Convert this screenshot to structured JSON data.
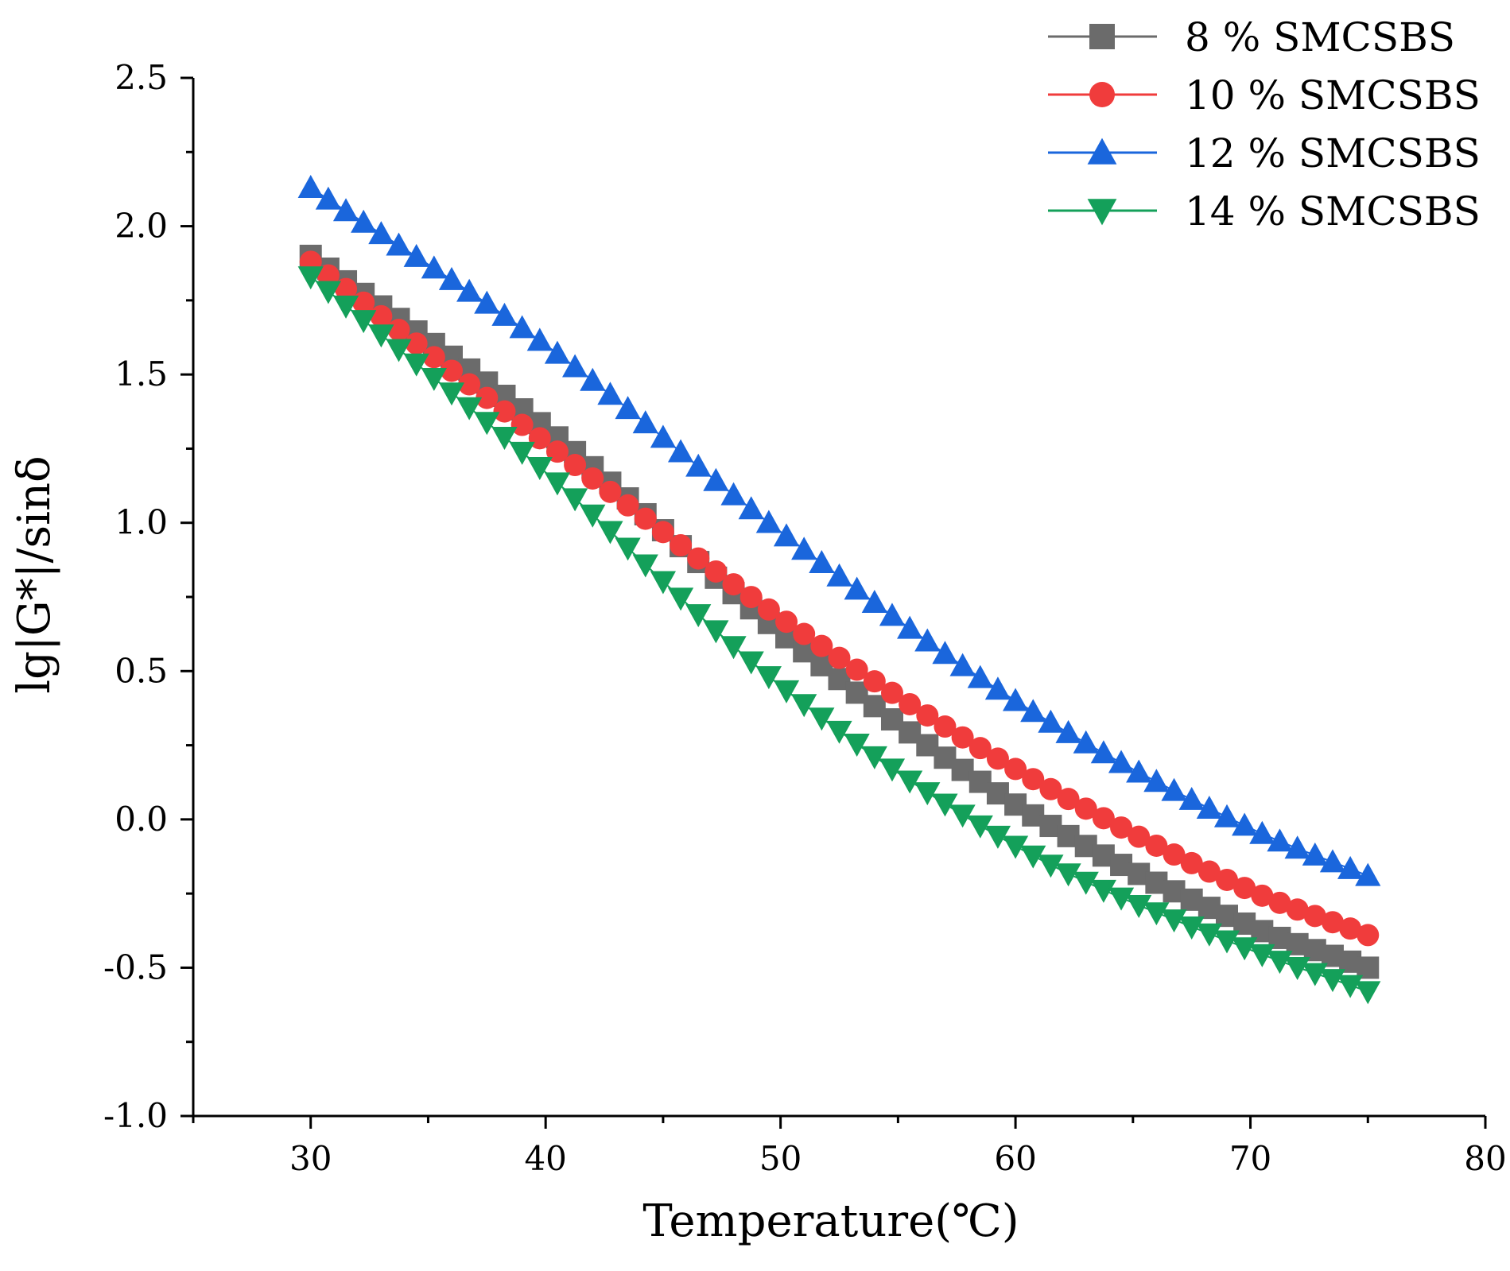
{
  "chart_data": {
    "type": "scatter",
    "title": "",
    "xlabel": "Temperature(℃)",
    "ylabel": "lg|G*|/sinδ",
    "xlim": [
      25,
      80
    ],
    "ylim": [
      -1.0,
      2.5
    ],
    "x_ticks": [
      30,
      40,
      50,
      60,
      70,
      80
    ],
    "x_tick_labels": [
      "30",
      "40",
      "50",
      "60",
      "70",
      "80"
    ],
    "y_ticks": [
      -1.0,
      -0.5,
      0.0,
      0.5,
      1.0,
      1.5,
      2.0,
      2.5
    ],
    "y_tick_labels": [
      "-1.0",
      "-0.5",
      "0.0",
      "0.5",
      "1.0",
      "1.5",
      "2.0",
      "2.5"
    ],
    "legend_position": "top-right",
    "x_points": {
      "start": 30,
      "end": 75,
      "step": 0.75
    },
    "series": [
      {
        "name": "8 % SMCSBS",
        "marker": "square",
        "color": "#6b6b6b",
        "anchors_x": [
          30,
          40,
          50,
          60,
          70,
          75
        ],
        "anchors_y": [
          1.9,
          1.32,
          0.63,
          0.05,
          -0.36,
          -0.5
        ]
      },
      {
        "name": "10 % SMCSBS",
        "marker": "circle",
        "color": "#f03c3c",
        "anchors_x": [
          30,
          40,
          50,
          60,
          70,
          75
        ],
        "anchors_y": [
          1.88,
          1.27,
          0.68,
          0.17,
          -0.24,
          -0.39
        ]
      },
      {
        "name": "12 % SMCSBS",
        "marker": "triangle-up",
        "color": "#1a66dc",
        "anchors_x": [
          30,
          40,
          50,
          60,
          70,
          75
        ],
        "anchors_y": [
          2.13,
          1.6,
          0.97,
          0.4,
          -0.03,
          -0.19
        ]
      },
      {
        "name": "14 % SMCSBS",
        "marker": "triangle-down",
        "color": "#14a05a",
        "anchors_x": [
          30,
          40,
          50,
          60,
          70,
          75
        ],
        "anchors_y": [
          1.83,
          1.17,
          0.45,
          -0.09,
          -0.44,
          -0.58
        ]
      }
    ]
  }
}
